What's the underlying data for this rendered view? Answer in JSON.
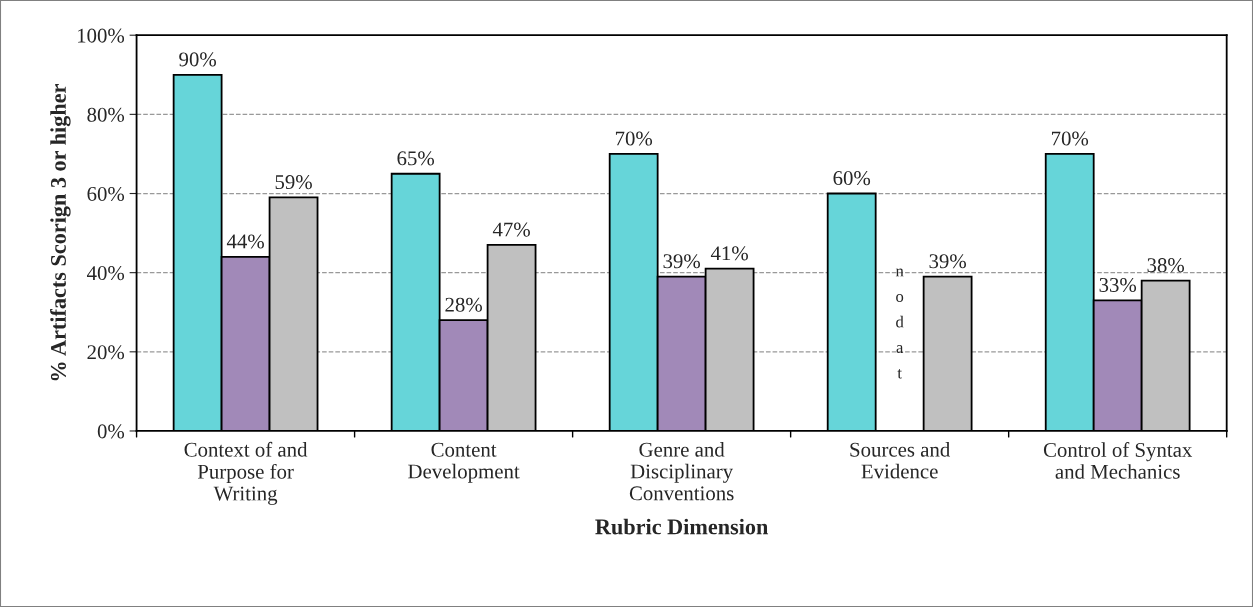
{
  "chart_data": {
    "type": "bar",
    "ylabel": "% Artifacts Scorign 3 or higher",
    "xlabel": "Rubric Dimension",
    "categories": [
      "Context of and\nPurpose for\nWriting",
      "Content\nDevelopment",
      "Genre and\nDisciplinary\nConventions",
      "Sources and\nEvidence",
      "Control of Syntax\nand Mechanics"
    ],
    "series": [
      {
        "color": "#66d5d9",
        "values": [
          90,
          65,
          70,
          60,
          70
        ],
        "value_labels": [
          "90%",
          "65%",
          "70%",
          "60%",
          "70%"
        ]
      },
      {
        "color": "#a189b8",
        "values": [
          44,
          28,
          39,
          null,
          33
        ],
        "value_labels": [
          "44%",
          "28%",
          "39%",
          null,
          "33%"
        ]
      },
      {
        "color": "#c0c0c0",
        "values": [
          59,
          47,
          41,
          39,
          38
        ],
        "value_labels": [
          "59%",
          "47%",
          "41%",
          "39%",
          "38%"
        ]
      }
    ],
    "annotations": [
      "n\no\nd\na\nt"
    ],
    "ylim": [
      0,
      100
    ],
    "yticks": [
      {
        "value": 0,
        "label": "0%"
      },
      {
        "value": 20,
        "label": "20%"
      },
      {
        "value": 40,
        "label": "40%"
      },
      {
        "value": 60,
        "label": "60%"
      },
      {
        "value": 80,
        "label": "80%"
      },
      {
        "value": 100,
        "label": "100%"
      }
    ],
    "grid": "y"
  }
}
